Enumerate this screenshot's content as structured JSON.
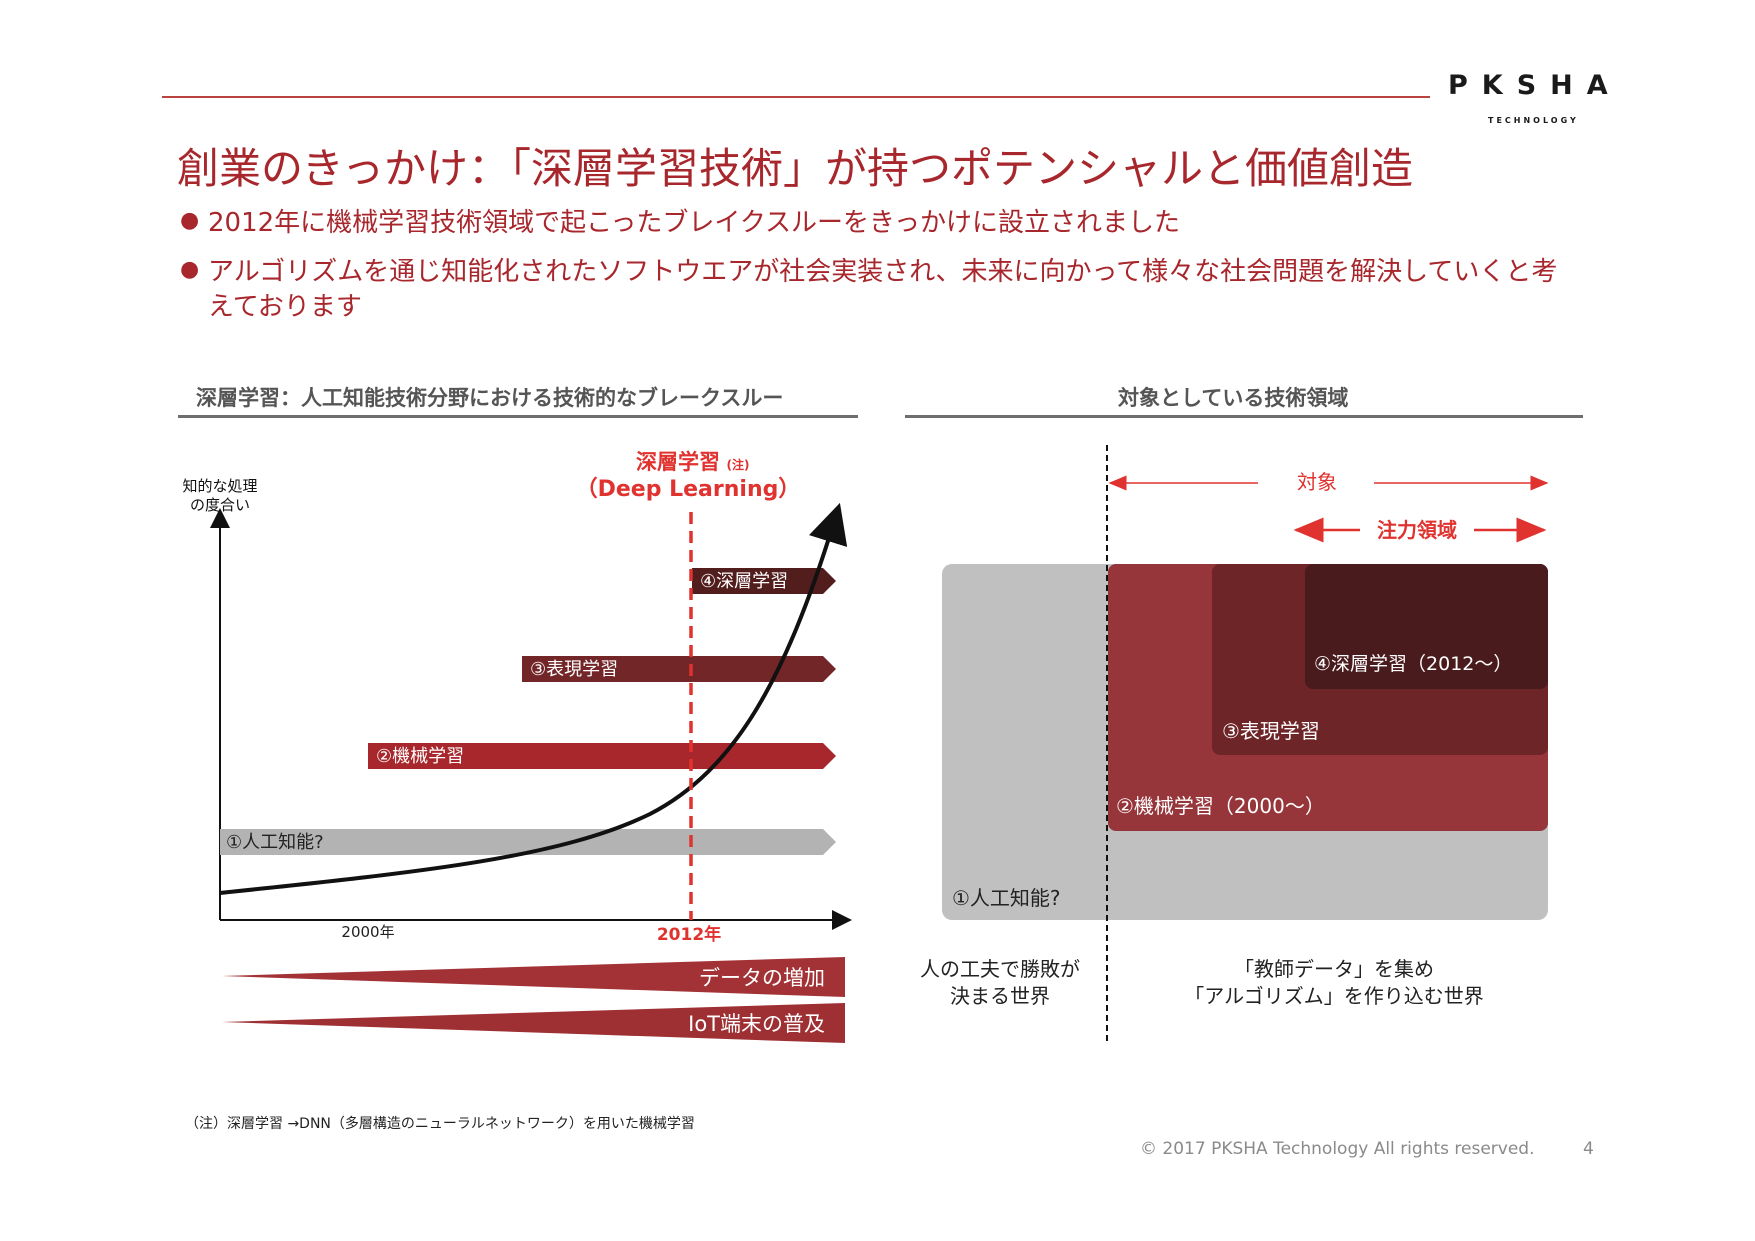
{
  "logo": {
    "main": "PKSHA",
    "sub": "TECHNOLOGY"
  },
  "title": "創業のきっかけ：「深層学習技術」が持つポテンシャルと価値創造",
  "bullets": [
    "2012年に機械学習技術領域で起こったブレイクスルーをきっかけに設立されました",
    "アルゴリズムを通じ知能化されたソフトウエアが社会実装され、未来に向かって様々な社会問題を解決していくと考",
    "えております"
  ],
  "left": {
    "section_title": "深層学習：人工知能技術分野における技術的なブレークスルー",
    "y_axis_label_1": "知的な処理",
    "y_axis_label_2": "の度合い",
    "dl_label": "深層学習",
    "dl_note": "(注)",
    "dl_label_en": "（Deep Learning）",
    "x_label_2000": "2000年",
    "x_label_2012": "2012年",
    "arrows": [
      {
        "label": "④深層学習",
        "color": "#521d1d"
      },
      {
        "label": "③表現学習",
        "color": "#722628"
      },
      {
        "label": "②機械学習",
        "color": "#a8272c"
      },
      {
        "label": "①人工知能?",
        "color": "#b3b3b3"
      }
    ],
    "wedges": [
      {
        "label": "データの増加",
        "color": "#a33236"
      },
      {
        "label": "IoT端末の普及",
        "color": "#9e2f33"
      }
    ]
  },
  "right": {
    "section_title": "対象としている技術領域",
    "target_label": "対象",
    "focus_label": "注力領域",
    "boxes": [
      {
        "label": "①人工知能?",
        "color": "#c0c0c0"
      },
      {
        "label": "②機械学習（2000～）",
        "color": "#96353a"
      },
      {
        "label": "③表現学習",
        "color": "#6e2528"
      },
      {
        "label": "④深層学習（2012～）",
        "color": "#4a1b1c"
      }
    ],
    "bottom_left_1": "人の工夫で勝敗が",
    "bottom_left_2": "決まる世界",
    "bottom_right_1": "「教師データ」を集め",
    "bottom_right_2": "「アルゴリズム」を作り込む世界"
  },
  "footnote": "（注）深層学習 →DNN（多層構造のニューラルネットワーク）を用いた機械学習",
  "copyright": "© 2017 PKSHA Technology All rights reserved.",
  "page_number": "4",
  "colors": {
    "accent": "#a8272c",
    "red_bright": "#e0322f"
  }
}
